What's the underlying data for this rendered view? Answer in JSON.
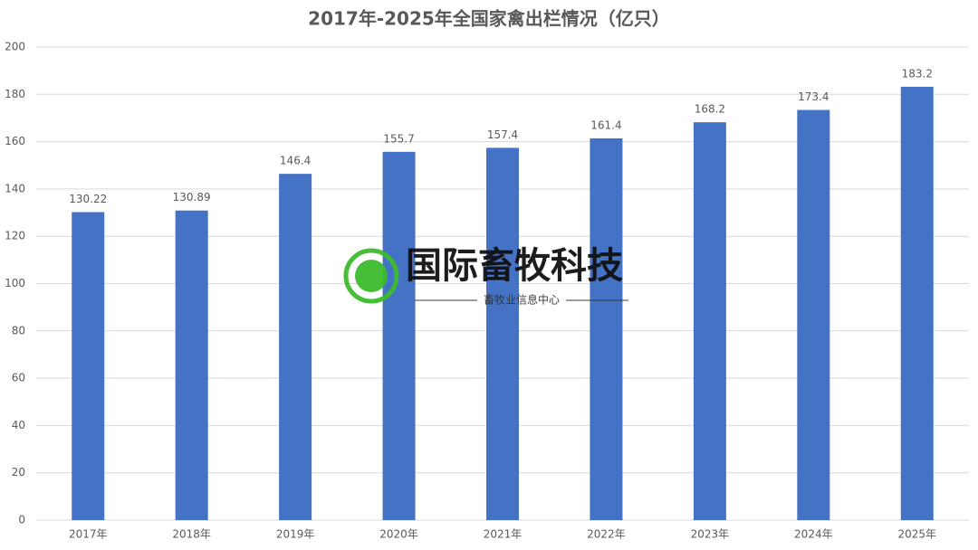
{
  "chart_data": {
    "type": "bar",
    "title": "2017年-2025年全国家禽出栏情况（亿只）",
    "categories": [
      "2017年",
      "2018年",
      "2019年",
      "2020年",
      "2021年",
      "2022年",
      "2023年",
      "2024年",
      "2025年"
    ],
    "values": [
      130.22,
      130.89,
      146.4,
      155.7,
      157.4,
      161.4,
      168.2,
      173.4,
      183.2
    ],
    "color": "#4472c4",
    "ylim": [
      0,
      200
    ],
    "yticks": [
      0,
      20,
      40,
      60,
      80,
      100,
      120,
      140,
      160,
      180,
      200
    ],
    "grid": true
  },
  "watermark": {
    "title": "国际畜牧科技",
    "subtitle": "畜牧业信息中心"
  }
}
